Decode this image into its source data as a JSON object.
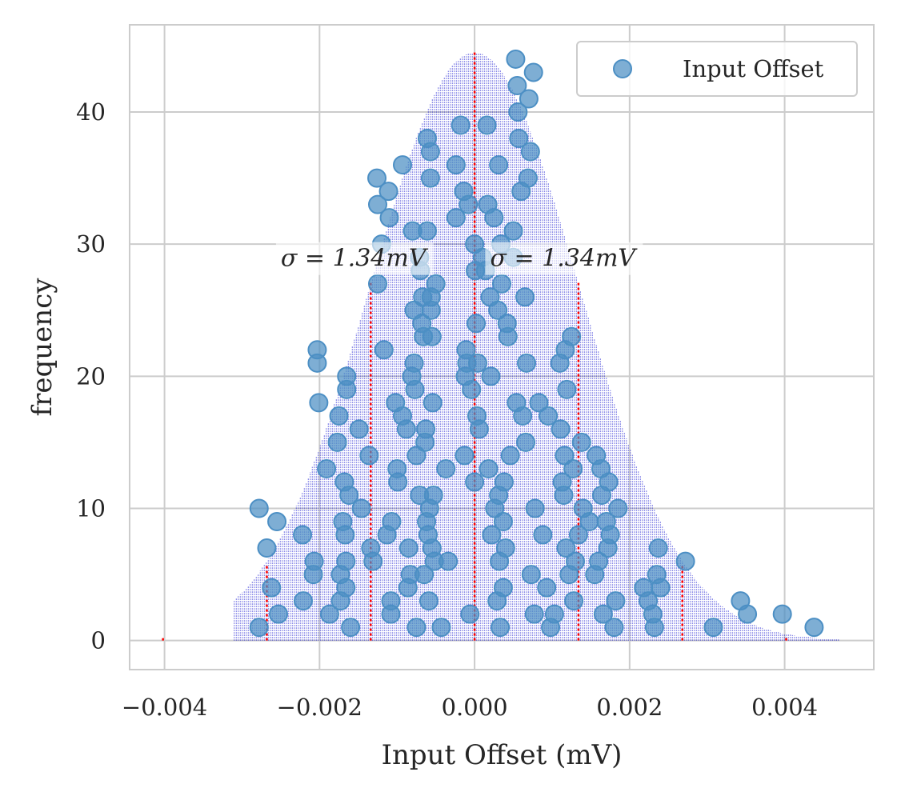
{
  "chart_data": {
    "type": "scatter",
    "xlabel": "Input Offset (mV)",
    "ylabel": "frequency",
    "xlim": [
      -0.00445,
      0.00515
    ],
    "ylim": [
      -2.2,
      46.6
    ],
    "x_ticks": [
      -0.004,
      -0.002,
      0.0,
      0.002,
      0.004
    ],
    "x_tick_labels": [
      "−0.004",
      "−0.002",
      "0.000",
      "0.002",
      "0.004"
    ],
    "y_ticks": [
      0,
      10,
      20,
      30,
      40
    ],
    "y_tick_labels": [
      "0",
      "10",
      "20",
      "30",
      "40"
    ],
    "grid": true,
    "legend": {
      "position": "top-right",
      "entries": [
        "Input Offset"
      ]
    },
    "annotations": [
      {
        "text": "σ = 1.34mV",
        "x": -0.0025,
        "y": 29.0
      },
      {
        "text": "σ = 1.34mV",
        "x": 0.0002,
        "y": 29.0
      }
    ],
    "density_curve": {
      "type": "gaussian-fill",
      "mean": 0.0,
      "sigma": 0.00134,
      "peak": 44.5,
      "x_range": [
        -0.0031,
        0.0047
      ],
      "color": "#0000cc"
    },
    "vertical_lines": {
      "color": "#ff0000",
      "lines": [
        {
          "x": -0.00402,
          "top": 0.3
        },
        {
          "x": -0.00268,
          "top": 5.8
        },
        {
          "x": -0.00134,
          "top": 27.2
        },
        {
          "x": 0.0,
          "top": 44.5
        },
        {
          "x": 0.00134,
          "top": 27.2
        },
        {
          "x": 0.00268,
          "top": 5.8
        },
        {
          "x": 0.00402,
          "top": 0.3
        }
      ]
    },
    "series": [
      {
        "name": "Input Offset",
        "color": "#4c8fc4",
        "points": [
          [
            -0.00278,
            1
          ],
          [
            -0.00278,
            10
          ],
          [
            -0.00268,
            7
          ],
          [
            -0.00262,
            4
          ],
          [
            -0.00255,
            9
          ],
          [
            -0.00253,
            2
          ],
          [
            -0.00222,
            8
          ],
          [
            -0.00221,
            3
          ],
          [
            -0.00208,
            5
          ],
          [
            -0.00207,
            6
          ],
          [
            -0.00203,
            22
          ],
          [
            -0.00203,
            21
          ],
          [
            -0.00201,
            18
          ],
          [
            -0.00191,
            13
          ],
          [
            -0.00187,
            2
          ],
          [
            -0.00177,
            15
          ],
          [
            -0.00175,
            17
          ],
          [
            -0.00173,
            5
          ],
          [
            -0.00173,
            3
          ],
          [
            -0.0017,
            9
          ],
          [
            -0.00168,
            12
          ],
          [
            -0.00167,
            8
          ],
          [
            -0.00166,
            4
          ],
          [
            -0.00166,
            6
          ],
          [
            -0.00165,
            20
          ],
          [
            -0.00165,
            19
          ],
          [
            -0.00162,
            11
          ],
          [
            -0.0016,
            1
          ],
          [
            -0.00149,
            16
          ],
          [
            -0.00146,
            10
          ],
          [
            -0.00136,
            14
          ],
          [
            -0.00134,
            7
          ],
          [
            -0.00131,
            6
          ],
          [
            -0.00126,
            35
          ],
          [
            -0.00125,
            33
          ],
          [
            -0.00125,
            27
          ],
          [
            -0.0012,
            30
          ],
          [
            -0.00117,
            22
          ],
          [
            -0.00113,
            8
          ],
          [
            -0.00111,
            34
          ],
          [
            -0.0011,
            32
          ],
          [
            -0.00108,
            3
          ],
          [
            -0.00108,
            2
          ],
          [
            -0.00107,
            9
          ],
          [
            -0.00102,
            18
          ],
          [
            -0.001,
            13
          ],
          [
            -0.00099,
            12
          ],
          [
            -0.00093,
            36
          ],
          [
            -0.00093,
            17
          ],
          [
            -0.00088,
            16
          ],
          [
            -0.00086,
            4
          ],
          [
            -0.00085,
            7
          ],
          [
            -0.00083,
            5
          ],
          [
            -0.00081,
            20
          ],
          [
            -0.0008,
            31
          ],
          [
            -0.00078,
            25
          ],
          [
            -0.00078,
            21
          ],
          [
            -0.00077,
            19
          ],
          [
            -0.00075,
            1
          ],
          [
            -0.00075,
            14
          ],
          [
            -0.00071,
            29
          ],
          [
            -0.00071,
            11
          ],
          [
            -0.0007,
            28
          ],
          [
            -0.00068,
            24
          ],
          [
            -0.00067,
            26
          ],
          [
            -0.00066,
            23
          ],
          [
            -0.00065,
            5
          ],
          [
            -0.00064,
            15
          ],
          [
            -0.00063,
            16
          ],
          [
            -0.00062,
            9
          ],
          [
            -0.00061,
            38
          ],
          [
            -0.00061,
            31
          ],
          [
            -0.0006,
            8
          ],
          [
            -0.00059,
            3
          ],
          [
            -0.00058,
            10
          ],
          [
            -0.00057,
            37
          ],
          [
            -0.00057,
            35
          ],
          [
            -0.00056,
            26
          ],
          [
            -0.00056,
            25
          ],
          [
            -0.00055,
            23
          ],
          [
            -0.00055,
            7
          ],
          [
            -0.00054,
            18
          ],
          [
            -0.00053,
            11
          ],
          [
            -0.00052,
            6
          ],
          [
            -0.0005,
            27
          ],
          [
            -0.00043,
            1
          ],
          [
            -0.00037,
            13
          ],
          [
            -0.00034,
            6
          ],
          [
            -0.00024,
            36
          ],
          [
            -0.00024,
            32
          ],
          [
            -0.00018,
            39
          ],
          [
            -0.00014,
            34
          ],
          [
            -0.00013,
            14
          ],
          [
            -0.00012,
            20
          ],
          [
            -0.00011,
            22
          ],
          [
            -0.0001,
            21
          ],
          [
            -8e-05,
            33
          ],
          [
            -6e-05,
            2
          ],
          [
            -4e-05,
            19
          ],
          [
            0.0,
            30
          ],
          [
            0.0,
            12
          ],
          [
            1e-05,
            28
          ],
          [
            2e-05,
            24
          ],
          [
            3e-05,
            17
          ],
          [
            4e-05,
            21
          ],
          [
            6e-05,
            16
          ],
          [
            0.0001,
            29
          ],
          [
            0.00014,
            28
          ],
          [
            0.00016,
            39
          ],
          [
            0.00017,
            33
          ],
          [
            0.00018,
            13
          ],
          [
            0.0002,
            26
          ],
          [
            0.00021,
            20
          ],
          [
            0.00022,
            8
          ],
          [
            0.00025,
            32
          ],
          [
            0.00026,
            10
          ],
          [
            0.00029,
            3
          ],
          [
            0.0003,
            25
          ],
          [
            0.00031,
            36
          ],
          [
            0.00031,
            11
          ],
          [
            0.00032,
            6
          ],
          [
            0.00033,
            1
          ],
          [
            0.00034,
            30
          ],
          [
            0.00035,
            27
          ],
          [
            0.00037,
            9
          ],
          [
            0.00037,
            4
          ],
          [
            0.00038,
            12
          ],
          [
            0.0004,
            7
          ],
          [
            0.00042,
            24
          ],
          [
            0.00043,
            23
          ],
          [
            0.00046,
            14
          ],
          [
            0.0005,
            29
          ],
          [
            0.0005,
            31
          ],
          [
            0.00053,
            44
          ],
          [
            0.00054,
            18
          ],
          [
            0.00055,
            42
          ],
          [
            0.00056,
            40
          ],
          [
            0.00057,
            38
          ],
          [
            0.0006,
            34
          ],
          [
            0.00062,
            17
          ],
          [
            0.00065,
            26
          ],
          [
            0.00066,
            15
          ],
          [
            0.00067,
            21
          ],
          [
            0.00069,
            35
          ],
          [
            0.0007,
            41
          ],
          [
            0.00072,
            37
          ],
          [
            0.00073,
            5
          ],
          [
            0.00076,
            43
          ],
          [
            0.00077,
            2
          ],
          [
            0.00078,
            10
          ],
          [
            0.00083,
            18
          ],
          [
            0.00088,
            8
          ],
          [
            0.00093,
            4
          ],
          [
            0.00095,
            17
          ],
          [
            0.00098,
            1
          ],
          [
            0.00103,
            2
          ],
          [
            0.0011,
            21
          ],
          [
            0.00111,
            16
          ],
          [
            0.00113,
            12
          ],
          [
            0.00115,
            11
          ],
          [
            0.00116,
            14
          ],
          [
            0.00117,
            22
          ],
          [
            0.00118,
            7
          ],
          [
            0.00119,
            19
          ],
          [
            0.00122,
            5
          ],
          [
            0.00125,
            23
          ],
          [
            0.00127,
            13
          ],
          [
            0.00128,
            3
          ],
          [
            0.0013,
            6
          ],
          [
            0.00134,
            8
          ],
          [
            0.00138,
            15
          ],
          [
            0.0014,
            10
          ],
          [
            0.00148,
            9
          ],
          [
            0.00155,
            5
          ],
          [
            0.00157,
            14
          ],
          [
            0.0016,
            6
          ],
          [
            0.00163,
            13
          ],
          [
            0.00164,
            11
          ],
          [
            0.00166,
            2
          ],
          [
            0.0017,
            9
          ],
          [
            0.00172,
            7
          ],
          [
            0.00173,
            12
          ],
          [
            0.00175,
            8
          ],
          [
            0.0018,
            1
          ],
          [
            0.00182,
            3
          ],
          [
            0.00185,
            10
          ],
          [
            0.00218,
            4
          ],
          [
            0.00224,
            3
          ],
          [
            0.0023,
            2
          ],
          [
            0.00232,
            1
          ],
          [
            0.00235,
            5
          ],
          [
            0.00237,
            7
          ],
          [
            0.0024,
            4
          ],
          [
            0.00272,
            6
          ],
          [
            0.00308,
            1
          ],
          [
            0.00343,
            3
          ],
          [
            0.00352,
            2
          ],
          [
            0.00397,
            2
          ],
          [
            0.00438,
            1
          ]
        ]
      }
    ]
  }
}
